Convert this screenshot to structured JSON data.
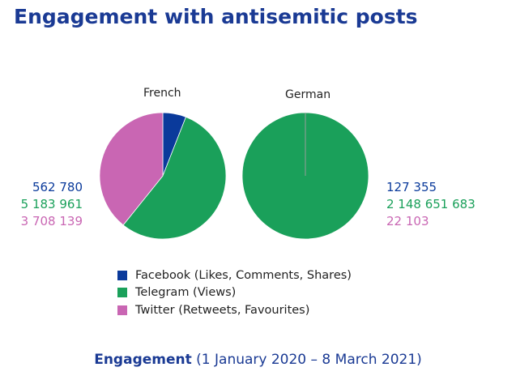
{
  "title": "Engagement with antisemitic posts",
  "caption": {
    "strong": "Engagement",
    "period": "(1 January 2020 – 8 March 2021)"
  },
  "colors": {
    "title": "#1a3a94",
    "facebook": "#0a3a9b",
    "telegram": "#1aa05a",
    "twitter": "#c966b3"
  },
  "chart_data": [
    {
      "type": "pie",
      "title": "French",
      "labels": [
        "Facebook (Likes, Comments, Shares)",
        "Telegram (Views)",
        "Twitter (Retweets, Favourites)"
      ],
      "values": [
        562780,
        5183961,
        3708139
      ],
      "value_labels": [
        "562 780",
        "5 183 961",
        "3 708 139"
      ],
      "legend": "bottom"
    },
    {
      "type": "pie",
      "title": "German",
      "labels": [
        "Facebook (Likes, Comments, Shares)",
        "Telegram (Views)",
        "Twitter (Retweets, Favourites)"
      ],
      "values": [
        127355,
        2148651683,
        22103
      ],
      "value_labels": [
        "127 355",
        "2 148 651 683",
        "22 103"
      ],
      "legend": "bottom"
    }
  ],
  "legend": [
    {
      "label": "Facebook (Likes, Comments, Shares)",
      "color": "#0a3a9b"
    },
    {
      "label": "Telegram (Views)",
      "color": "#1aa05a"
    },
    {
      "label": "Twitter (Retweets, Favourites)",
      "color": "#c966b3"
    }
  ]
}
